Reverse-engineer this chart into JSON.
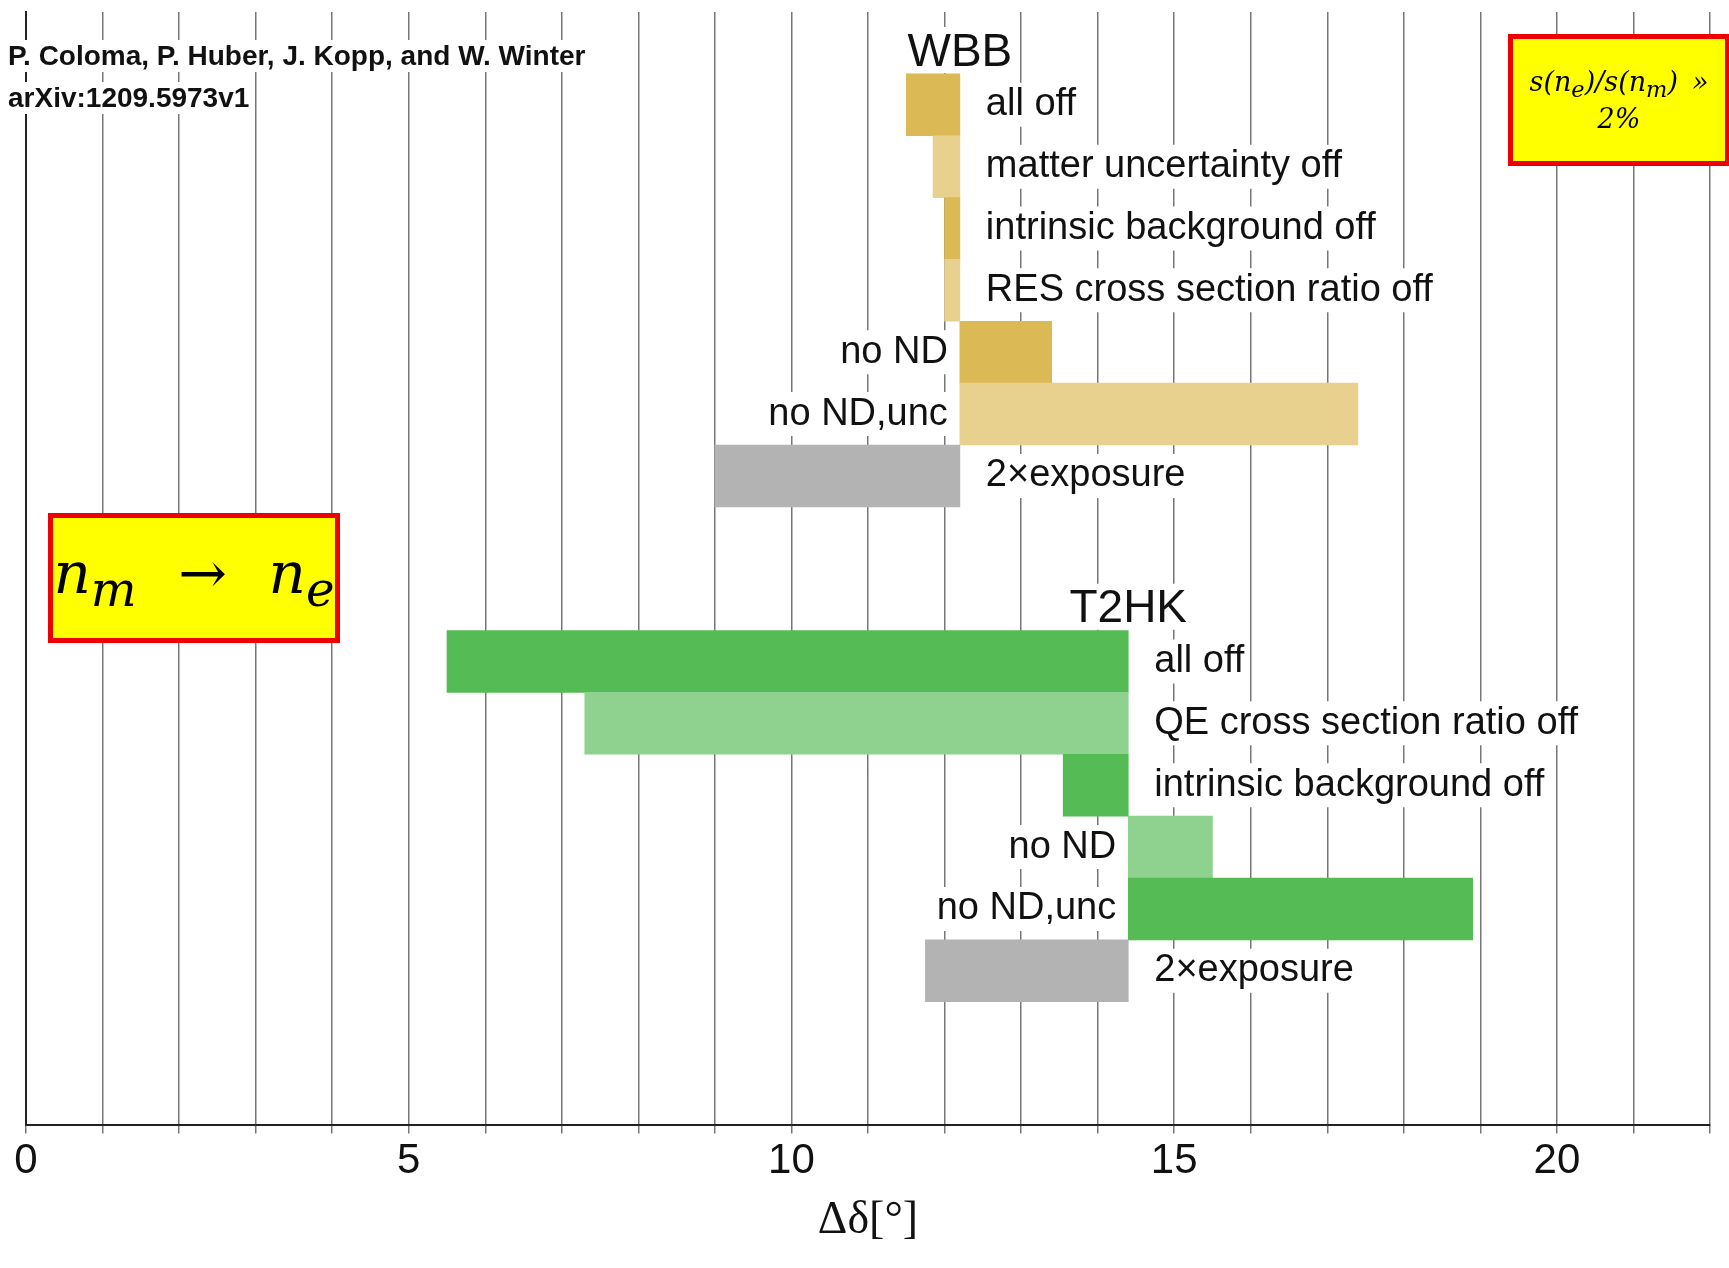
{
  "chart_data": {
    "type": "bar",
    "orientation": "horizontal",
    "xlabel": "Δδ[°]",
    "categories": [
      null,
      "all off",
      "matter uncertainty off",
      "intrinsic background off",
      "RES cross section ratio off",
      "no ND",
      "no ND,unc",
      "2×exposure",
      null,
      null,
      "all off",
      "QE cross section ratio off",
      "intrinsic background off",
      "no ND",
      "no ND,unc",
      "2×exposure",
      null,
      null
    ],
    "series": [
      {
        "name": "WBB",
        "base": [
          null,
          12.2,
          12.2,
          12.2,
          12.2,
          12.2,
          12.2,
          12.2,
          null,
          null,
          null,
          null,
          null,
          null,
          null,
          null,
          null,
          null
        ],
        "values": [
          null,
          -0.7,
          -0.35,
          -0.2,
          -0.2,
          1.2,
          5.2,
          -3.2,
          null,
          null,
          null,
          null,
          null,
          null,
          null,
          null,
          null,
          null
        ],
        "colors": [
          null,
          "#dbb955",
          "#e8d08f",
          "#dbb955",
          "#e8d08f",
          "#dbb955",
          "#e8d08f",
          "#b3b3b3",
          null,
          null,
          null,
          null,
          null,
          null,
          null,
          null,
          null,
          null
        ]
      },
      {
        "name": "T2HK",
        "base": [
          null,
          null,
          null,
          null,
          null,
          null,
          null,
          null,
          null,
          null,
          14.4,
          14.4,
          14.4,
          14.4,
          14.4,
          14.4,
          null,
          null
        ],
        "values": [
          null,
          null,
          null,
          null,
          null,
          null,
          null,
          null,
          null,
          null,
          -8.9,
          -7.1,
          -0.85,
          1.1,
          4.5,
          -2.65,
          null,
          null
        ],
        "colors": [
          null,
          null,
          null,
          null,
          null,
          null,
          null,
          null,
          null,
          null,
          "#55bb55",
          "#8fd18f",
          "#55bb55",
          "#8fd18f",
          "#55bb55",
          "#b3b3b3",
          null,
          null
        ]
      }
    ],
    "xlim": [
      0,
      22
    ],
    "xticks": [
      0,
      {
        "value": 1,
        "label": null
      },
      {
        "value": 2,
        "label": null
      },
      {
        "value": 3,
        "label": null
      },
      {
        "value": 4,
        "label": null
      },
      5,
      {
        "value": 6,
        "label": null
      },
      {
        "value": 7,
        "label": null
      },
      {
        "value": 8,
        "label": null
      },
      {
        "value": 9,
        "label": null
      },
      10,
      {
        "value": 11,
        "label": null
      },
      {
        "value": 12,
        "label": null
      },
      {
        "value": 13,
        "label": null
      },
      {
        "value": 14,
        "label": null
      },
      15,
      {
        "value": 16,
        "label": null
      },
      {
        "value": 17,
        "label": null
      },
      {
        "value": 18,
        "label": null
      },
      {
        "value": 19,
        "label": null
      },
      20,
      {
        "value": 21,
        "label": null
      },
      {
        "value": 22,
        "label": null
      }
    ],
    "grid": "x",
    "legend": false,
    "tick_labels": "x",
    "annotations": [
      "P. Coloma, P. Huber, J. Kopp, and W. Winter",
      "arXiv:1209.5973v1",
      "n$_{m}$ → n$_{e}$",
      "s(n$_{e}$)/s(n$_{m}$) » 2%"
    ]
  }
}
